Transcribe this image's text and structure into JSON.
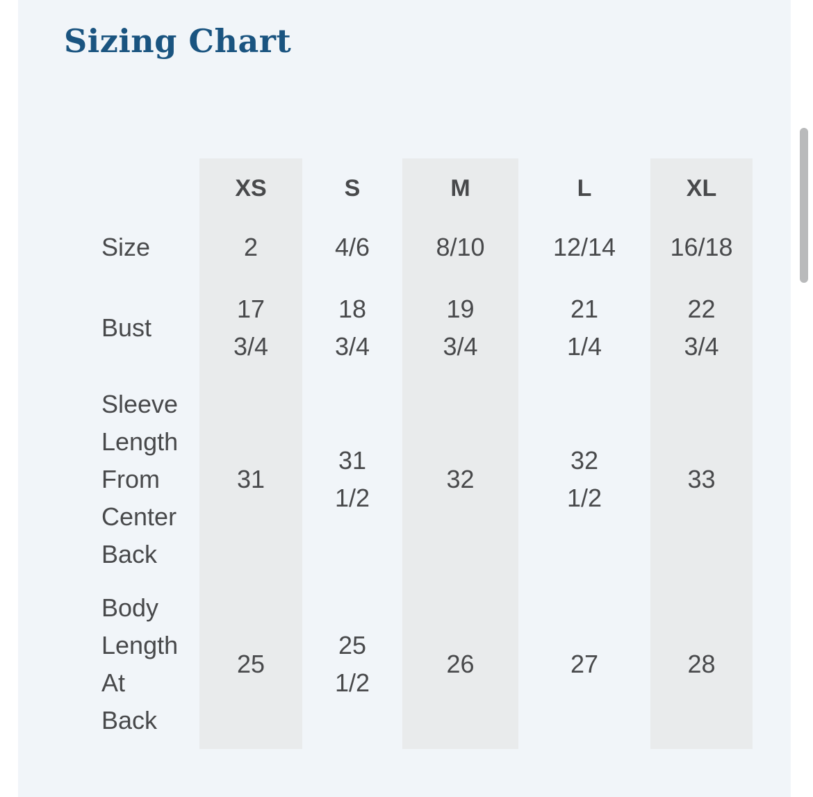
{
  "page": {
    "title": "Sizing Chart",
    "colors": {
      "panel_background": "#f1f5f9",
      "column_stripe": "#e9ebec",
      "title_text": "#1a5480",
      "body_text": "#48494b",
      "scrollbar_thumb": "#b9babb"
    }
  },
  "table": {
    "columns": [
      "XS",
      "S",
      "M",
      "L",
      "XL"
    ],
    "rows": [
      {
        "label": "Size",
        "values": [
          "2",
          "4/6",
          "8/10",
          "12/14",
          "16/18"
        ]
      },
      {
        "label": "Bust",
        "values": [
          "17\n3/4",
          "18\n3/4",
          "19\n3/4",
          "21\n1/4",
          "22\n3/4"
        ]
      },
      {
        "label": "Sleeve\nLength\nFrom\nCenter\nBack",
        "values": [
          "31",
          "31\n1/2",
          "32",
          "32\n1/2",
          "33"
        ]
      },
      {
        "label": "Body\nLength\nAt\nBack",
        "values": [
          "25",
          "25\n1/2",
          "26",
          "27",
          "28"
        ]
      }
    ]
  }
}
